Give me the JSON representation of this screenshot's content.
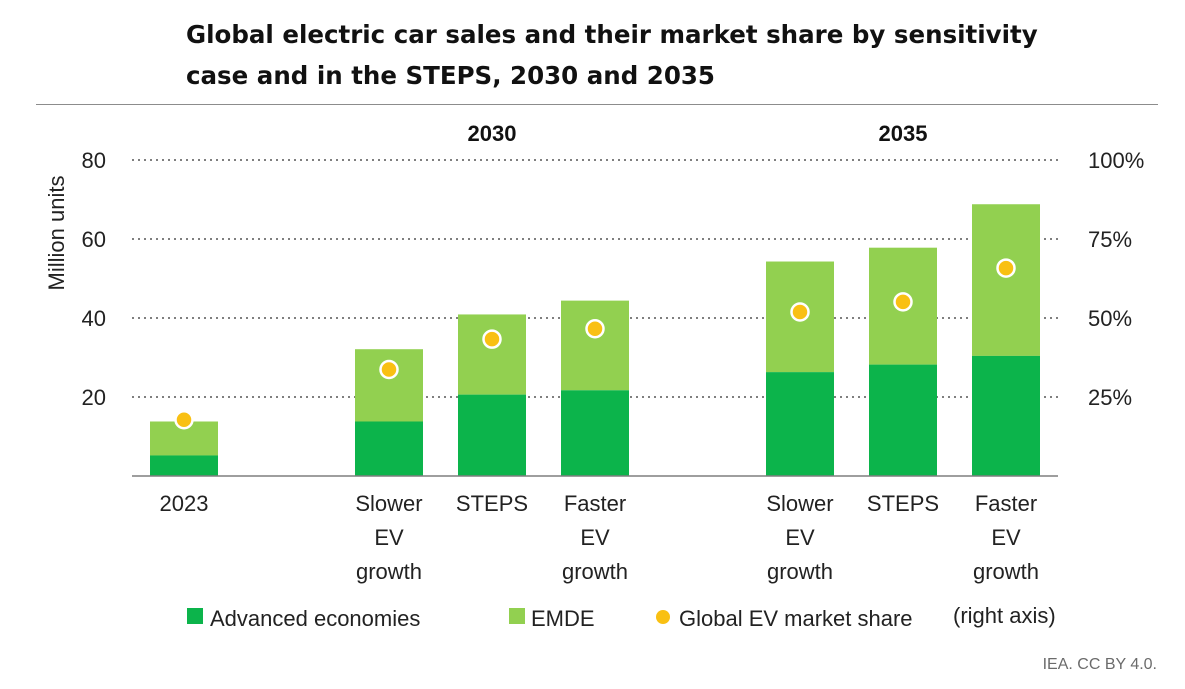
{
  "title": "Global electric car sales and their market share by sensitivity case and in the STEPS, 2030 and 2035",
  "credit": "IEA. CC BY 4.0.",
  "colors": {
    "advanced": "#0cb44b",
    "emde": "#92d050",
    "share": "#f9c013",
    "grid": "#7f7f7f"
  },
  "chart_data": {
    "type": "bar",
    "stacked": true,
    "group_labels": [
      "2030",
      "2035"
    ],
    "ylabel": "Million units",
    "ylim": [
      0,
      80
    ],
    "yticks": [
      20,
      40,
      60,
      80
    ],
    "y2label": "",
    "y2lim": [
      0,
      100
    ],
    "y2ticks": [
      "25%",
      "50%",
      "75%",
      "100%"
    ],
    "grid": true,
    "legend_position": "bottom",
    "legend_note": "(right axis)",
    "categories": [
      {
        "label_lines": [
          "2023"
        ],
        "group": ""
      },
      {
        "label_lines": [
          "Slower",
          "EV",
          "growth"
        ],
        "group": "2030"
      },
      {
        "label_lines": [
          "STEPS"
        ],
        "group": "2030"
      },
      {
        "label_lines": [
          "Faster",
          "EV",
          "growth"
        ],
        "group": "2030"
      },
      {
        "label_lines": [
          "Slower",
          "EV",
          "growth"
        ],
        "group": "2035"
      },
      {
        "label_lines": [
          "STEPS"
        ],
        "group": "2035"
      },
      {
        "label_lines": [
          "Faster",
          "EV",
          "growth"
        ],
        "group": "2035"
      }
    ],
    "series": [
      {
        "name": "Advanced economies",
        "type": "bar",
        "axis": "left",
        "values": [
          5.2,
          13.8,
          20.6,
          21.7,
          26.3,
          28.2,
          30.4
        ]
      },
      {
        "name": "EMDE",
        "type": "bar",
        "axis": "left",
        "values": [
          8.6,
          18.3,
          20.3,
          22.7,
          28.0,
          29.6,
          38.4
        ]
      },
      {
        "name": "Global EV market share",
        "type": "scatter",
        "axis": "right",
        "values": [
          17.8,
          33.7,
          43.3,
          46.6,
          51.9,
          55.1,
          65.8
        ]
      }
    ]
  }
}
